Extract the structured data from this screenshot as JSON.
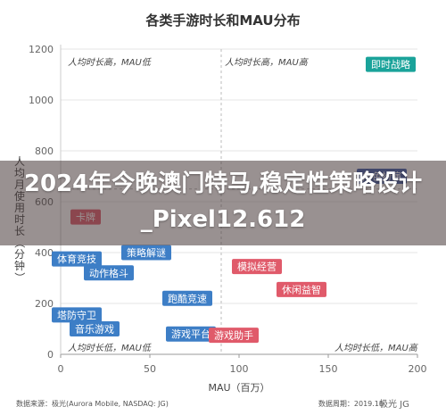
{
  "chart_data": {
    "type": "scatter",
    "title": "各类手游时长和MAU分布",
    "xlabel": "MAU（百万）",
    "ylabel": "人均月使用时长（分钟）",
    "xlim": [
      0,
      200
    ],
    "ylim": [
      0,
      1200
    ],
    "x_ticks": [
      "0",
      "50",
      "100",
      "150",
      "200"
    ],
    "y_ticks": [
      "0",
      "200",
      "400",
      "600",
      "800",
      "1000",
      "1200"
    ],
    "reference_lines": {
      "x": 90,
      "y": 650
    },
    "quadrant_labels": {
      "top_left": "人均时长高，MAU低",
      "top_right": "人均时长高，MAU高",
      "bottom_left": "人均时长低，MAU低",
      "bottom_right": "人均时长低，MAU高"
    },
    "points": [
      {
        "label": "即时战略",
        "x": 193,
        "y": 1140,
        "color": "#1aa39a"
      },
      {
        "label": "角色扮演",
        "x": 180,
        "y": 700,
        "color": "#3d5ba8"
      },
      {
        "label": "卡牌",
        "x": 14,
        "y": 540,
        "color": "#e05a6a"
      },
      {
        "label": "策略解谜",
        "x": 48,
        "y": 400,
        "color": "#3d7ec6"
      },
      {
        "label": "体育竞技",
        "x": 5,
        "y": 375,
        "color": "#3d7ec6"
      },
      {
        "label": "动作格斗",
        "x": 27,
        "y": 320,
        "color": "#3d7ec6"
      },
      {
        "label": "模拟经营",
        "x": 110,
        "y": 345,
        "color": "#e05a6a"
      },
      {
        "label": "休闲益智",
        "x": 135,
        "y": 255,
        "color": "#e05a6a"
      },
      {
        "label": "跑酷竞速",
        "x": 71,
        "y": 220,
        "color": "#3d7ec6"
      },
      {
        "label": "塔防守卫",
        "x": 9,
        "y": 155,
        "color": "#3d7ec6"
      },
      {
        "label": "音乐游戏",
        "x": 19,
        "y": 100,
        "color": "#3d7ec6"
      },
      {
        "label": "游戏平台",
        "x": 73,
        "y": 80,
        "color": "#3d7ec6"
      },
      {
        "label": "游戏助手",
        "x": 97,
        "y": 75,
        "color": "#e05a6a"
      }
    ]
  },
  "overlay": {
    "banner_text": "2024年今晚澳门特马,稳定性策略设计_Pixel12.612"
  },
  "footer": {
    "source": "数据来源：极光(Aurora Mobile, NASDAQ: JG)",
    "date": "数据周期：2019.10",
    "watermark": "极光 JG"
  }
}
